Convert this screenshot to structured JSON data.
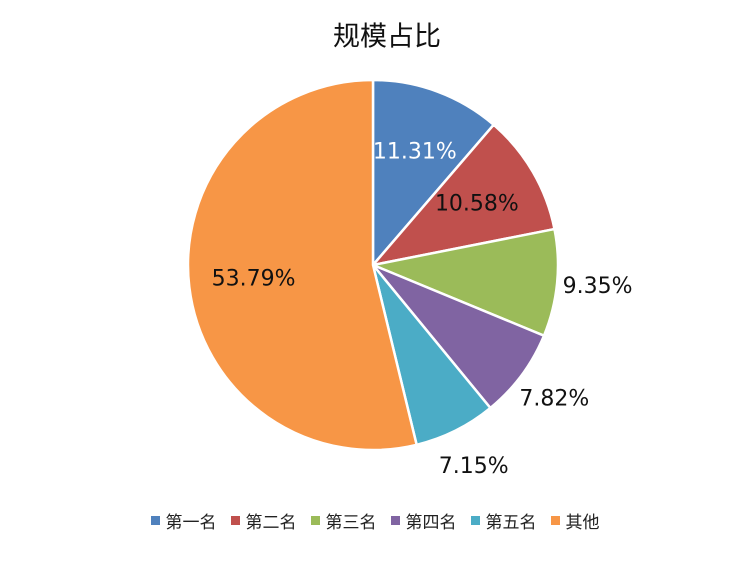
{
  "chart_data": {
    "type": "pie",
    "title": "规模占比",
    "categories": [
      "第一名",
      "第二名",
      "第三名",
      "第四名",
      "第五名",
      "其他"
    ],
    "values": [
      11.31,
      10.58,
      9.35,
      7.82,
      7.15,
      53.79
    ],
    "value_labels": [
      "11.31%",
      "10.58%",
      "9.35%",
      "7.82%",
      "7.15%",
      "53.79%"
    ],
    "colors": [
      "#4f81bd",
      "#c0504d",
      "#9bbb59",
      "#8064a2",
      "#4bacc6",
      "#f79646"
    ],
    "legend": "bottom"
  }
}
